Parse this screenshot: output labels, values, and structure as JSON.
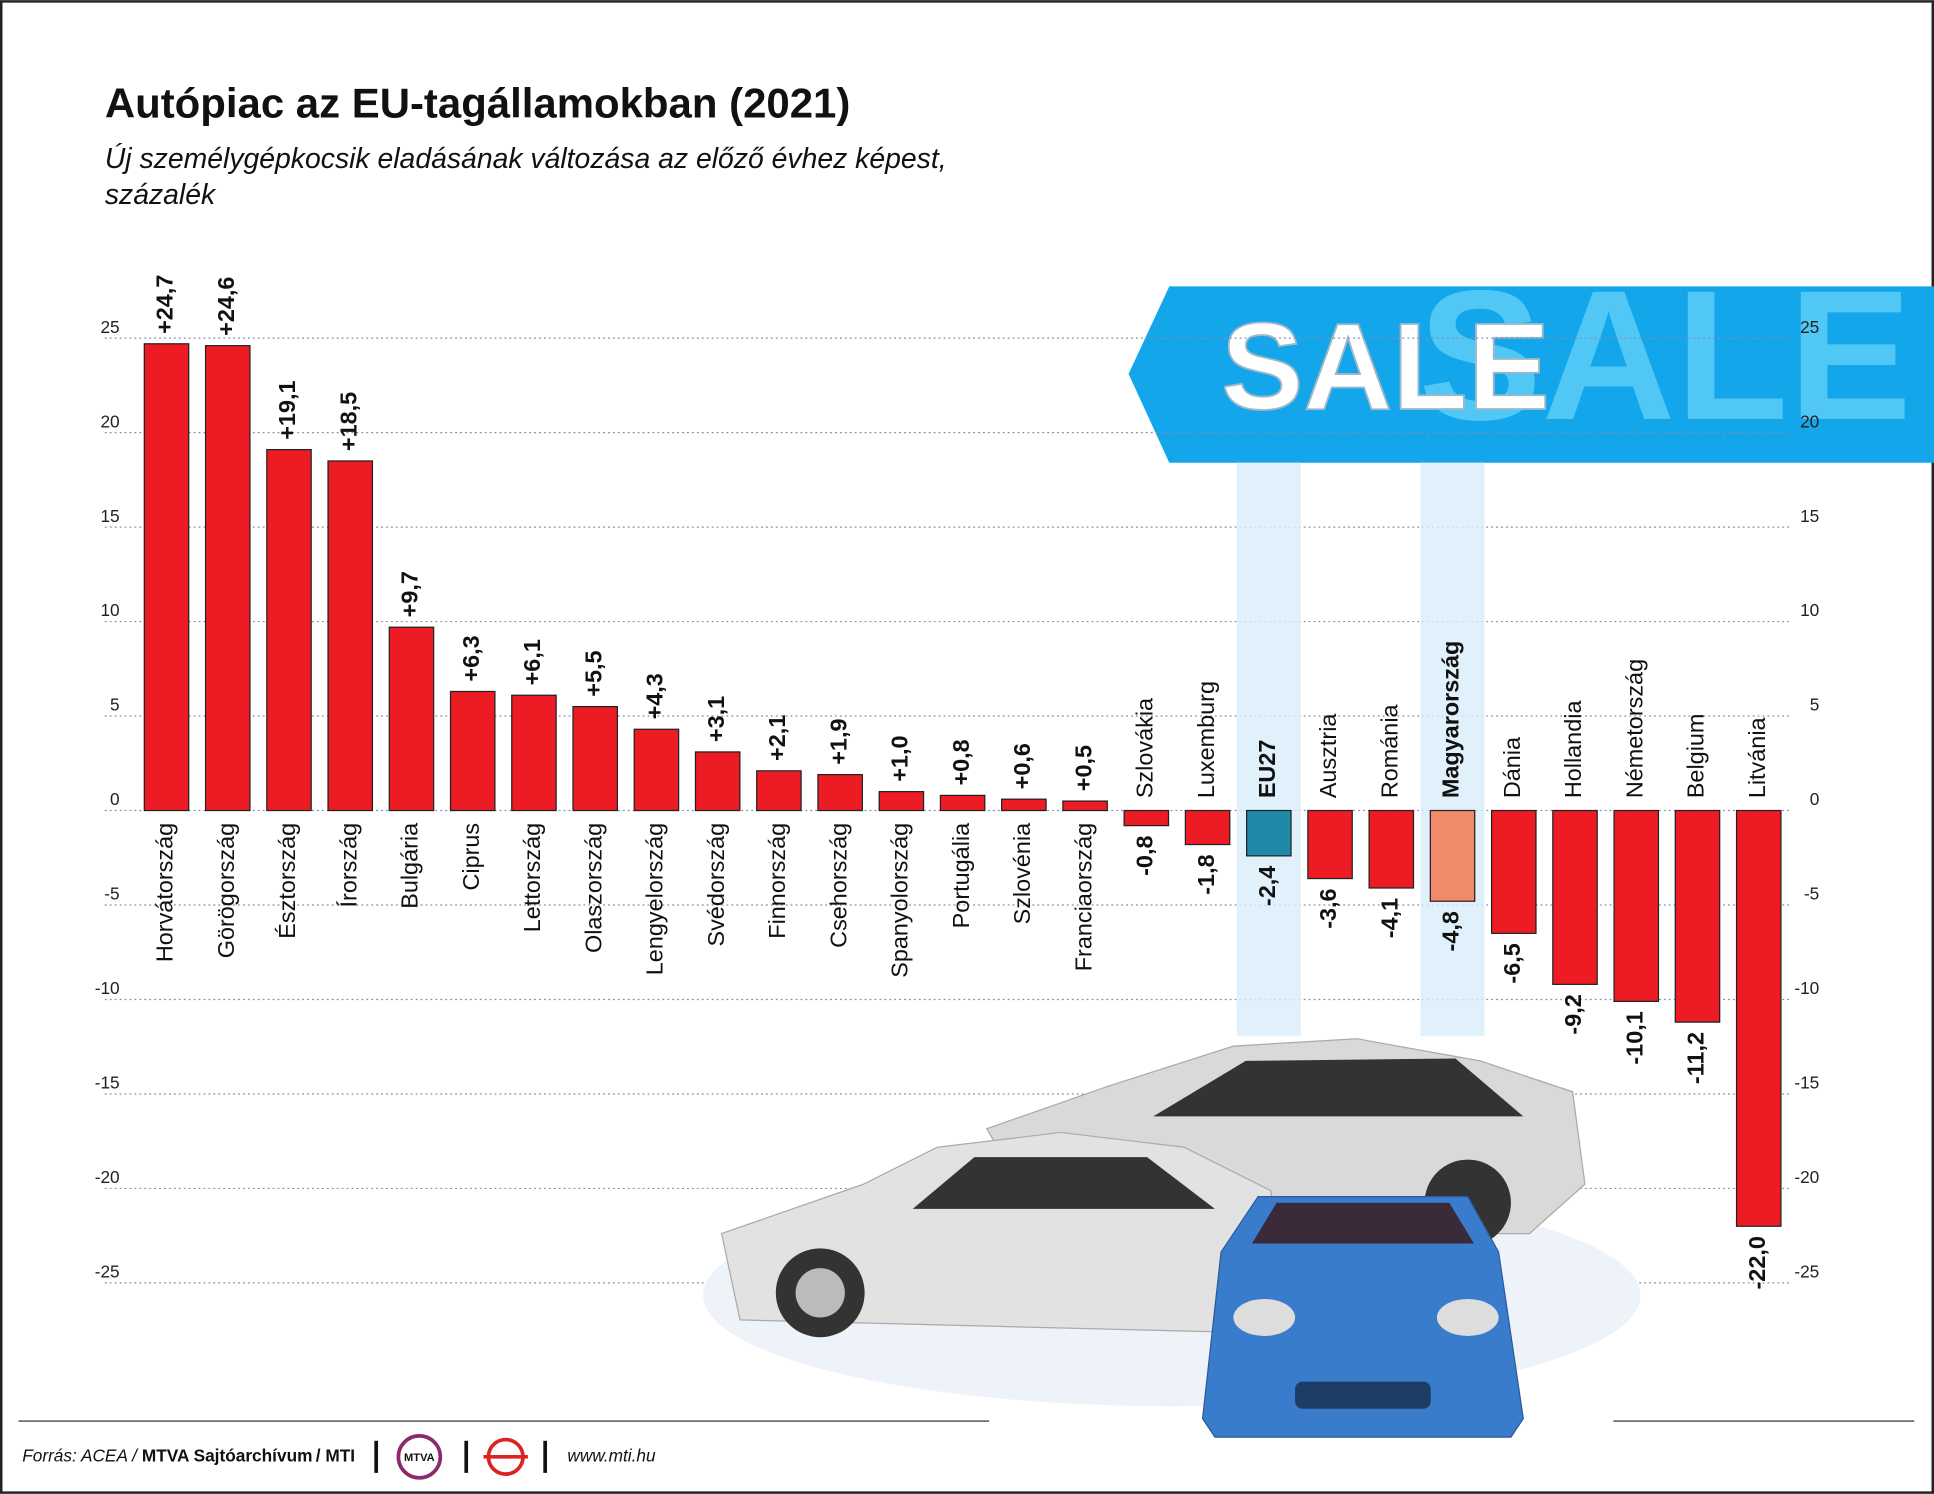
{
  "chart_data": {
    "type": "bar",
    "title": "Autópiac az EU-tagállamokban (2021)",
    "subtitle": [
      "Új személygépkocsik eladásának változása az előző évhez képest,",
      "százalék"
    ],
    "categories": [
      "Horvátország",
      "Görögország",
      "Észtország",
      "Írország",
      "Bulgária",
      "Ciprus",
      "Lettország",
      "Olaszország",
      "Lengyelország",
      "Svédország",
      "Finnország",
      "Csehország",
      "Spanyolország",
      "Portugália",
      "Szlovénia",
      "Franciaország",
      "Szlovákia",
      "Luxemburg",
      "EU27",
      "Ausztria",
      "Románia",
      "Magyarország",
      "Dánia",
      "Hollandia",
      "Németország",
      "Belgium",
      "Litvánia"
    ],
    "values": [
      24.7,
      24.6,
      19.1,
      18.5,
      9.7,
      6.3,
      6.1,
      5.5,
      4.3,
      3.1,
      2.1,
      1.9,
      1.0,
      0.8,
      0.6,
      0.5,
      -0.8,
      -1.8,
      -2.4,
      -3.6,
      -4.1,
      -4.8,
      -6.5,
      -9.2,
      -10.1,
      -11.2,
      -22.0
    ],
    "value_labels": [
      "+24,7",
      "+24,6",
      "+19,1",
      "+18,5",
      "+9,7",
      "+6,3",
      "+6,1",
      "+5,5",
      "+4,3",
      "+3,1",
      "+2,1",
      "+1,9",
      "+1,0",
      "+0,8",
      "+0,6",
      "+0,5",
      "-0,8",
      "-1,8",
      "-2,4",
      "-3,6",
      "-4,1",
      "-4,8",
      "-6,5",
      "-9,2",
      "-10,1",
      "-11,2",
      "-22,0"
    ],
    "color": "#ed1c24",
    "colors": [
      "#ed1c24",
      "#ed1c24",
      "#ed1c24",
      "#ed1c24",
      "#ed1c24",
      "#ed1c24",
      "#ed1c24",
      "#ed1c24",
      "#ed1c24",
      "#ed1c24",
      "#ed1c24",
      "#ed1c24",
      "#ed1c24",
      "#ed1c24",
      "#ed1c24",
      "#ed1c24",
      "#ed1c24",
      "#ed1c24",
      "#1f8aa8",
      "#ed1c24",
      "#ed1c24",
      "#f08a6a",
      "#ed1c24",
      "#ed1c24",
      "#ed1c24",
      "#ed1c24",
      "#ed1c24"
    ],
    "ylim": [
      -30,
      30
    ],
    "yticks": [
      -25,
      -20,
      -15,
      -10,
      -5,
      0,
      5,
      10,
      15,
      20,
      25
    ],
    "grid": true
  },
  "banner": {
    "text": "SALE"
  },
  "footer": {
    "source": "Forrás: ACEA /",
    "archive": "MTVA Sajtóarchívum",
    "agency": "/ MTI",
    "logo": "MTVA",
    "url": "www.mti.hu"
  }
}
